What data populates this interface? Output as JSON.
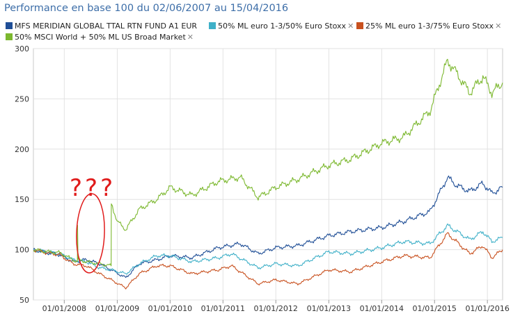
{
  "chart_data": {
    "type": "line",
    "title": "Performance en base 100 du 02/06/2007 au 15/04/2016",
    "ylim": [
      50,
      300
    ],
    "y_ticks": [
      "300",
      "250",
      "200",
      "150",
      "100",
      "50"
    ],
    "x_ticks": [
      "01/01/2008",
      "01/01/2009",
      "01/01/2010",
      "01/01/2011",
      "01/01/2012",
      "01/01/2013",
      "01/01/2014",
      "01/01/2015",
      "01/01/2016"
    ],
    "x_range": [
      "2007-06-02",
      "2016-04-15"
    ],
    "grid": true,
    "legend_position": "top",
    "series": [
      {
        "name": "MFS MERIDIAN GLOBAL TTAL RTN FUND A1 EUR",
        "color": "#1f4e96",
        "points": [
          [
            "2007-06-02",
            100
          ],
          [
            "2007-09-01",
            97
          ],
          [
            "2007-12-01",
            95
          ],
          [
            "2008-03-01",
            88
          ],
          [
            "2008-06-01",
            90
          ],
          [
            "2008-09-01",
            86
          ],
          [
            "2008-11-20",
            80
          ],
          [
            "2009-03-01",
            72
          ],
          [
            "2009-06-01",
            86
          ],
          [
            "2009-10-01",
            90
          ],
          [
            "2010-01-01",
            94
          ],
          [
            "2010-06-01",
            92
          ],
          [
            "2010-12-01",
            102
          ],
          [
            "2011-05-01",
            106
          ],
          [
            "2011-09-01",
            96
          ],
          [
            "2012-01-01",
            102
          ],
          [
            "2012-06-01",
            104
          ],
          [
            "2013-01-01",
            114
          ],
          [
            "2013-06-01",
            118
          ],
          [
            "2014-01-01",
            122
          ],
          [
            "2014-06-01",
            128
          ],
          [
            "2014-12-01",
            138
          ],
          [
            "2015-04-01",
            172
          ],
          [
            "2015-06-01",
            164
          ],
          [
            "2015-09-01",
            158
          ],
          [
            "2015-12-01",
            166
          ],
          [
            "2016-02-01",
            156
          ],
          [
            "2016-04-15",
            162
          ]
        ]
      },
      {
        "name": "50% ML euro 1-3/50% Euro Stoxx",
        "color": "#3fb0c8",
        "points": [
          [
            "2007-06-02",
            100
          ],
          [
            "2007-09-01",
            98
          ],
          [
            "2007-12-01",
            96
          ],
          [
            "2008-03-01",
            90
          ],
          [
            "2008-06-01",
            88
          ],
          [
            "2008-09-01",
            82
          ],
          [
            "2008-11-20",
            80
          ],
          [
            "2009-03-01",
            76
          ],
          [
            "2009-06-01",
            86
          ],
          [
            "2009-10-01",
            94
          ],
          [
            "2010-01-01",
            94
          ],
          [
            "2010-06-01",
            88
          ],
          [
            "2010-12-01",
            92
          ],
          [
            "2011-03-01",
            96
          ],
          [
            "2011-09-01",
            82
          ],
          [
            "2012-01-01",
            86
          ],
          [
            "2012-06-01",
            84
          ],
          [
            "2013-01-01",
            98
          ],
          [
            "2013-06-01",
            96
          ],
          [
            "2014-01-01",
            102
          ],
          [
            "2014-06-01",
            108
          ],
          [
            "2014-12-01",
            106
          ],
          [
            "2015-04-01",
            124
          ],
          [
            "2015-09-01",
            110
          ],
          [
            "2015-12-01",
            118
          ],
          [
            "2016-02-01",
            108
          ],
          [
            "2016-04-15",
            112
          ]
        ]
      },
      {
        "name": "25% ML euro 1-3/75% Euro Stoxx",
        "color": "#c8501e",
        "points": [
          [
            "2007-06-02",
            100
          ],
          [
            "2007-09-01",
            97
          ],
          [
            "2007-12-01",
            95
          ],
          [
            "2008-03-01",
            86
          ],
          [
            "2008-06-01",
            84
          ],
          [
            "2008-09-01",
            76
          ],
          [
            "2008-11-20",
            70
          ],
          [
            "2009-03-01",
            62
          ],
          [
            "2009-06-01",
            76
          ],
          [
            "2009-10-01",
            84
          ],
          [
            "2010-01-01",
            84
          ],
          [
            "2010-06-01",
            76
          ],
          [
            "2010-12-01",
            80
          ],
          [
            "2011-03-01",
            84
          ],
          [
            "2011-09-01",
            66
          ],
          [
            "2012-01-01",
            70
          ],
          [
            "2012-06-01",
            66
          ],
          [
            "2013-01-01",
            80
          ],
          [
            "2013-06-01",
            78
          ],
          [
            "2014-01-01",
            88
          ],
          [
            "2014-06-01",
            94
          ],
          [
            "2014-12-01",
            92
          ],
          [
            "2015-04-01",
            116
          ],
          [
            "2015-09-01",
            96
          ],
          [
            "2015-12-01",
            104
          ],
          [
            "2016-02-01",
            92
          ],
          [
            "2016-04-15",
            100
          ]
        ]
      },
      {
        "name": "50% MSCI World + 50% ML US Broad Market",
        "color": "#7cb82f",
        "points": [
          [
            "2007-06-02",
            100
          ],
          [
            "2007-09-01",
            98
          ],
          [
            "2007-12-01",
            97
          ],
          [
            "2008-03-01",
            90
          ],
          [
            "2008-04-01",
            88
          ],
          [
            "2008-04-02",
            124
          ],
          [
            "2008-04-05",
            90
          ],
          [
            "2008-06-01",
            88
          ],
          [
            "2008-09-01",
            86
          ],
          [
            "2008-11-20",
            84
          ],
          [
            "2008-11-21",
            146
          ],
          [
            "2008-12-15",
            136
          ],
          [
            "2009-01-01",
            128
          ],
          [
            "2009-03-01",
            120
          ],
          [
            "2009-06-01",
            140
          ],
          [
            "2009-10-01",
            150
          ],
          [
            "2010-01-01",
            162
          ],
          [
            "2010-06-01",
            154
          ],
          [
            "2010-12-01",
            168
          ],
          [
            "2011-05-01",
            172
          ],
          [
            "2011-09-01",
            152
          ],
          [
            "2012-01-01",
            162
          ],
          [
            "2012-06-01",
            170
          ],
          [
            "2013-01-01",
            184
          ],
          [
            "2013-06-01",
            190
          ],
          [
            "2014-01-01",
            206
          ],
          [
            "2014-06-01",
            212
          ],
          [
            "2014-12-01",
            238
          ],
          [
            "2015-04-01",
            288
          ],
          [
            "2015-06-01",
            276
          ],
          [
            "2015-09-01",
            256
          ],
          [
            "2015-12-01",
            272
          ],
          [
            "2016-02-01",
            256
          ],
          [
            "2016-04-15",
            266
          ]
        ]
      }
    ],
    "annotation": {
      "text": "???",
      "color": "#e01b1b"
    }
  }
}
